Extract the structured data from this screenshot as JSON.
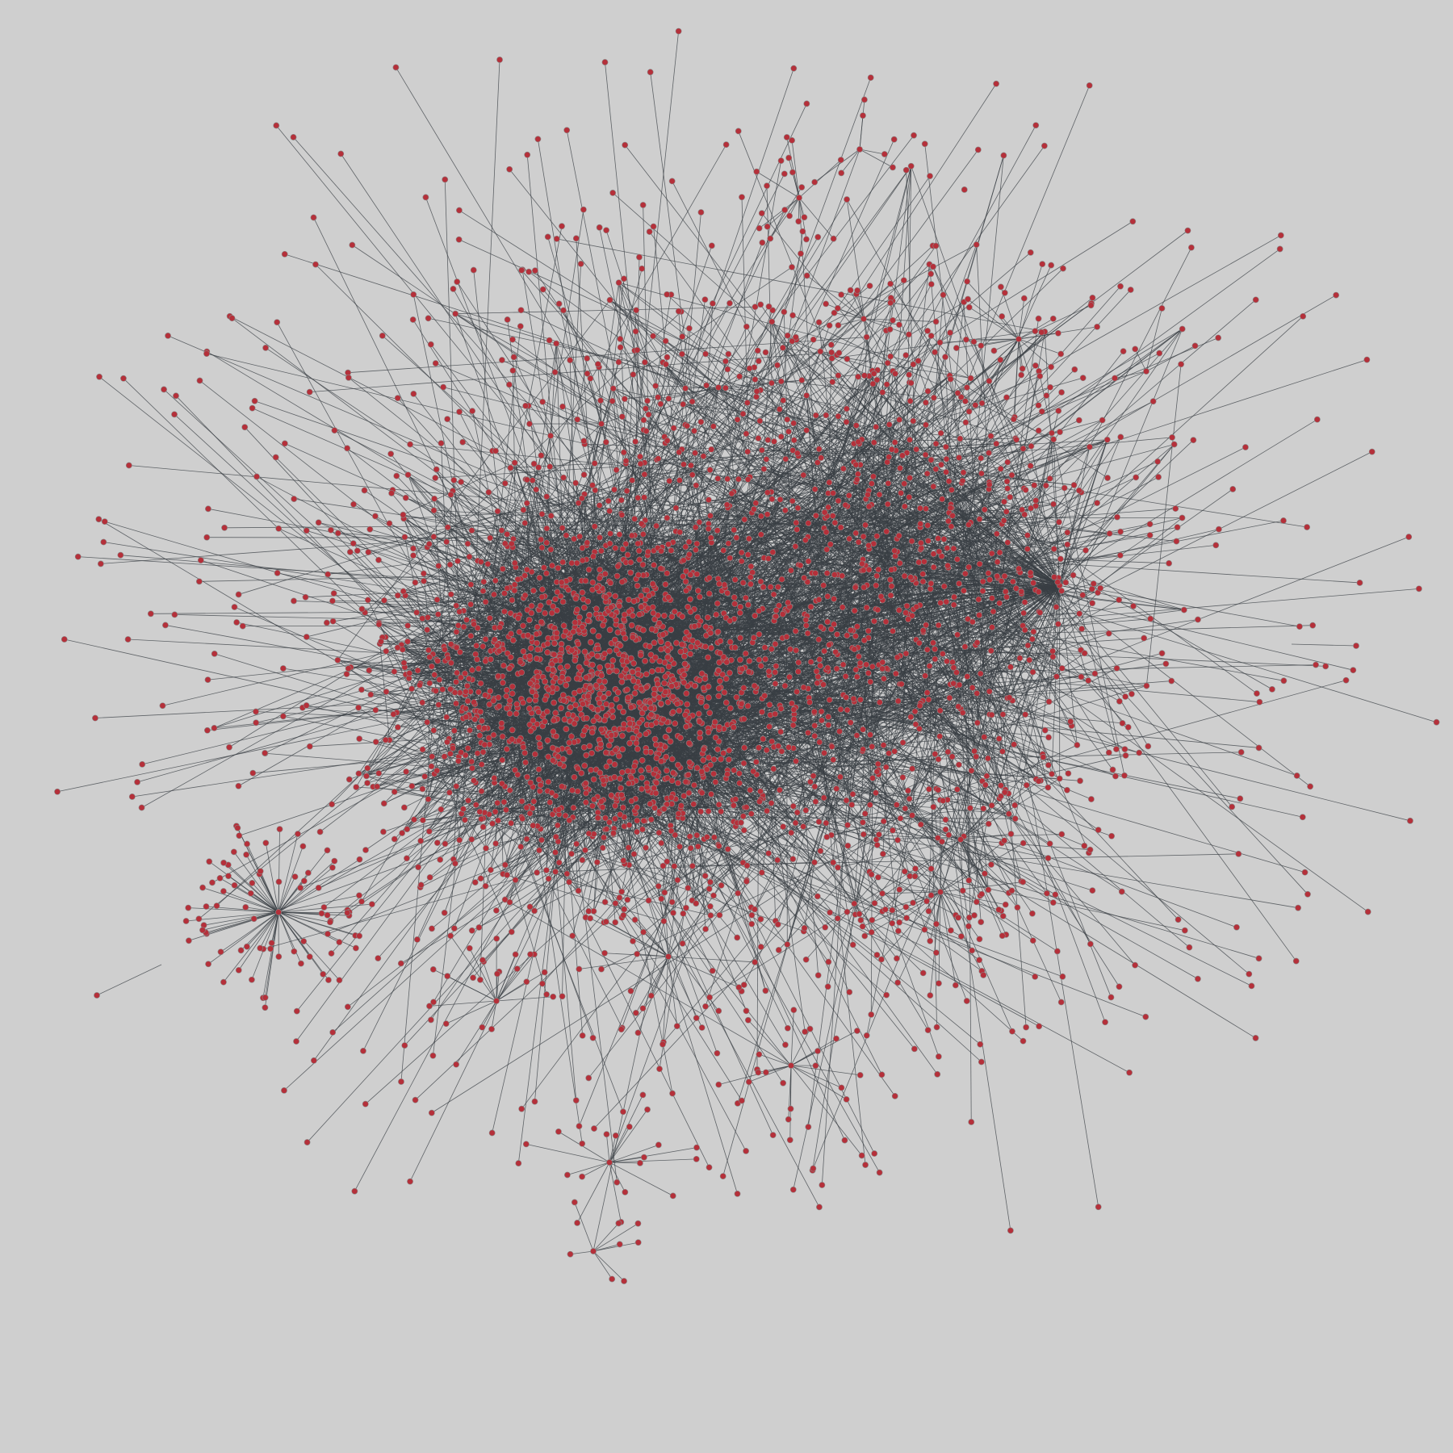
{
  "graph": {
    "type": "network",
    "background_color": "#cfcfcf",
    "node_color": "#b5303a",
    "node_stroke_color": "#8a8a8a",
    "edge_color": "#3a3f44"
  }
}
